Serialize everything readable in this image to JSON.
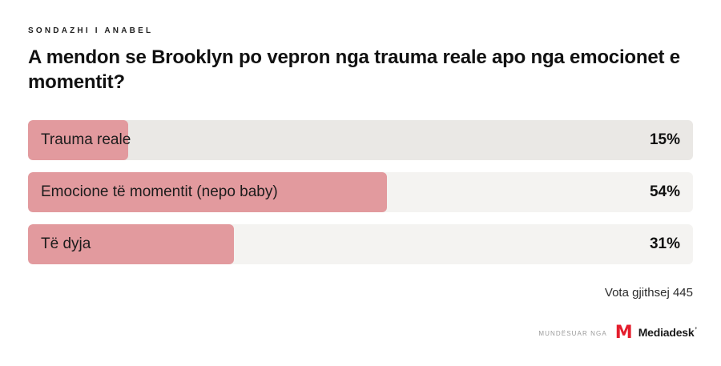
{
  "poll": {
    "kicker": "SONDAZHI I ANABEL",
    "title": "A mendon se Brooklyn po vepron nga trauma reale apo nga emocionet e momentit?",
    "options": [
      {
        "label": "Trauma reale",
        "percent_label": "15%",
        "value": 15,
        "selected": true
      },
      {
        "label": "Emocione të momentit (nepo baby)",
        "percent_label": "54%",
        "value": 54,
        "selected": false
      },
      {
        "label": "Të dyja",
        "percent_label": "31%",
        "value": 31,
        "selected": false
      }
    ],
    "total_votes_label": "Vota gjithsej 445"
  },
  "footer": {
    "powered_by_label": "MUNDËSUAR NGA",
    "brand_logo": "M",
    "brand_name": "Mediadesk",
    "brand_tick": "’"
  },
  "colors": {
    "bar_fill": "#e29a9e",
    "track_default": "#f4f3f1",
    "track_selected": "#eae8e5",
    "brand_red": "#e41e2d"
  },
  "chart_data": {
    "type": "bar",
    "orientation": "horizontal",
    "title": "A mendon se Brooklyn po vepron nga trauma reale apo nga emocionet e momentit?",
    "categories": [
      "Trauma reale",
      "Emocione të momentit (nepo baby)",
      "Të dyja"
    ],
    "values": [
      15,
      54,
      31
    ],
    "unit": "%",
    "xlim": [
      0,
      100
    ],
    "annotations": [
      "Vota gjithsej 445"
    ],
    "legend": "none",
    "grid": false
  }
}
